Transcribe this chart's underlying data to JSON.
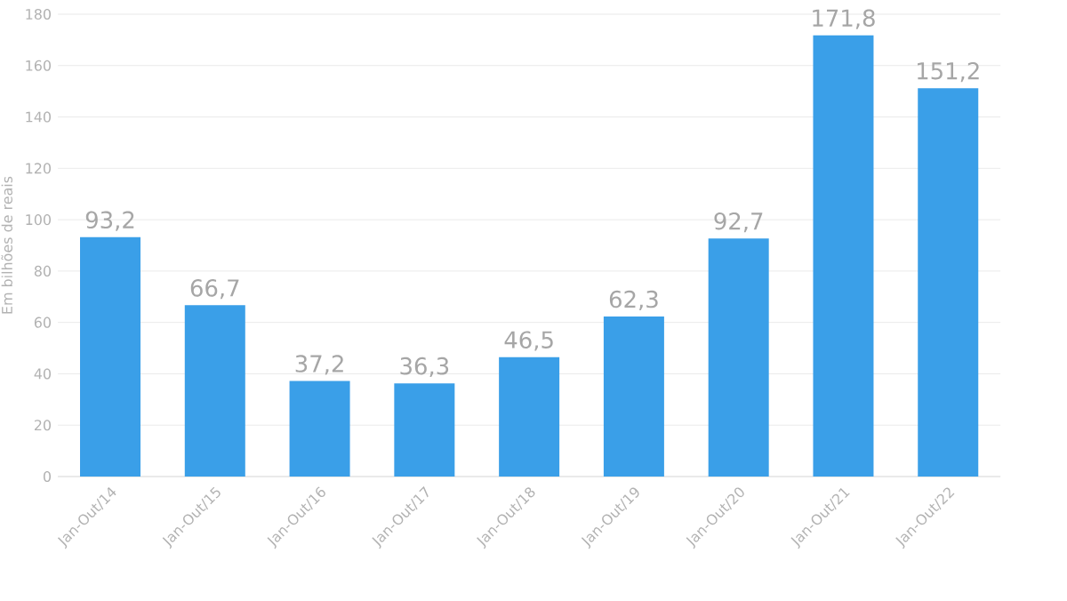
{
  "chart_data": {
    "type": "bar",
    "ylabel": "Em bilhões de reais",
    "categories": [
      "Jan-Out/14",
      "Jan-Out/15",
      "Jan-Out/16",
      "Jan-Out/17",
      "Jan-Out/18",
      "Jan-Out/19",
      "Jan-Out/20",
      "Jan-Out/21",
      "Jan-Out/22"
    ],
    "values": [
      93.2,
      66.7,
      37.2,
      36.3,
      46.5,
      62.3,
      92.7,
      171.8,
      151.2
    ],
    "value_labels": [
      "93,2",
      "66,7",
      "37,2",
      "36,3",
      "46,5",
      "62,3",
      "92,7",
      "171,8",
      "151,2"
    ],
    "color": "#3a9fe8",
    "ylim": [
      0,
      180
    ],
    "yticks": [
      0,
      20,
      40,
      60,
      80,
      100,
      120,
      140,
      160,
      180
    ],
    "grid": "y"
  }
}
